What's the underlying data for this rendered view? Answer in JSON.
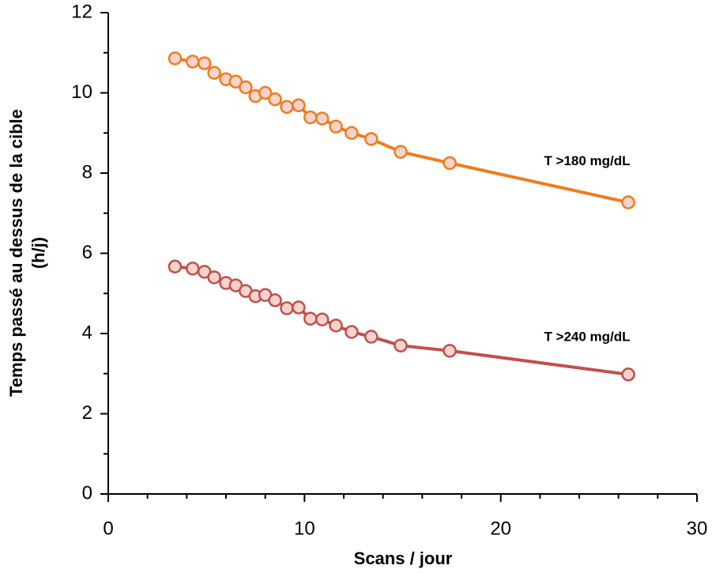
{
  "chart_data": {
    "type": "line",
    "xlabel": "Scans / jour",
    "ylabel": [
      "Temps passé au dessus de la cible",
      "(h/j)"
    ],
    "xlim": [
      0,
      30
    ],
    "xticks": [
      0,
      10,
      20,
      30
    ],
    "ylim": [
      0,
      12
    ],
    "yticks": [
      0,
      2,
      4,
      6,
      8,
      10,
      12
    ],
    "grid": false,
    "x": [
      3.4,
      4.3,
      4.9,
      5.4,
      6.0,
      6.5,
      7.0,
      7.5,
      8.0,
      8.5,
      9.1,
      9.7,
      10.3,
      10.9,
      11.6,
      12.4,
      13.4,
      14.9,
      17.4,
      26.5
    ],
    "series": [
      {
        "name": "T >180 mg/dL",
        "color": "#f07c1e",
        "values": [
          10.86,
          10.78,
          10.74,
          10.5,
          10.34,
          10.28,
          10.14,
          9.92,
          10.0,
          9.84,
          9.65,
          9.69,
          9.39,
          9.36,
          9.16,
          9.0,
          8.85,
          8.53,
          8.25,
          7.27
        ]
      },
      {
        "name": "T >240 mg/dL",
        "color": "#c0504d",
        "values": [
          5.67,
          5.62,
          5.54,
          5.4,
          5.26,
          5.2,
          5.06,
          4.93,
          4.96,
          4.83,
          4.63,
          4.65,
          4.37,
          4.35,
          4.2,
          4.04,
          3.92,
          3.7,
          3.57,
          2.98
        ]
      }
    ]
  }
}
